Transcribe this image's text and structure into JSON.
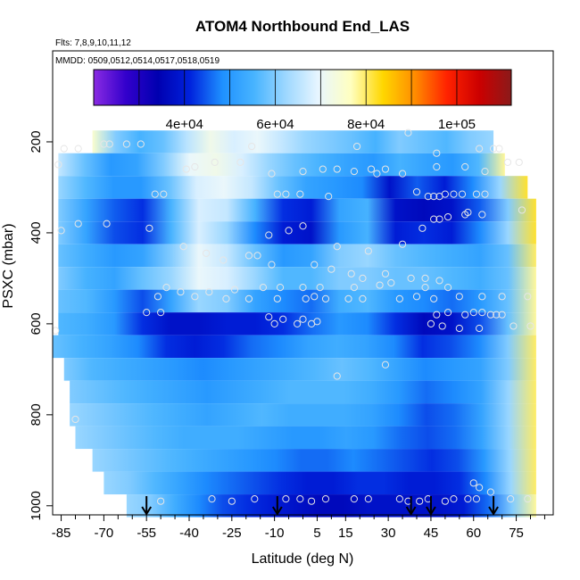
{
  "chart_data": {
    "type": "heatmap",
    "title": "ATOM4 Northbound End_LAS",
    "flights_text": "Flts: 7,8,9,10,11,12",
    "dates_text": "MMDD: 0509,0512,0514,0517,0518,0519",
    "xlabel": "Latitude (deg N)",
    "ylabel": "PSXC (mbar)",
    "xlim": [
      -88,
      88
    ],
    "ylim": [
      1020,
      0
    ],
    "x_ticks": [
      -85,
      -70,
      -55,
      -40,
      -25,
      -10,
      5,
      15,
      30,
      45,
      60,
      75
    ],
    "y_ticks": [
      200,
      400,
      600,
      800,
      1000
    ],
    "colorbar": {
      "range": [
        20000,
        112000
      ],
      "ticks": [
        40000,
        60000,
        80000,
        100000
      ],
      "tick_labels": [
        "4e+04",
        "6e+04",
        "8e+04",
        "1e+05"
      ],
      "colors": [
        "#8a2be2",
        "#3300cc",
        "#0000b0",
        "#0022dd",
        "#1e90ff",
        "#48b4ff",
        "#9fd8ff",
        "#e8f6ff",
        "#ffffc0",
        "#ffd700",
        "#ff8c00",
        "#ff2200",
        "#cc0000",
        "#8b1a1a"
      ]
    },
    "pressure_bands": [
      200,
      250,
      300,
      350,
      400,
      450,
      500,
      550,
      600,
      650,
      700,
      750,
      800,
      850,
      900,
      950,
      1000
    ],
    "band_x_start": [
      -74,
      -86,
      -86,
      -86,
      -86,
      -86,
      -86,
      -86,
      -86,
      -88,
      -84,
      -82,
      -82,
      -80,
      -74,
      -70,
      -62
    ],
    "band_x_end": [
      67,
      71,
      79,
      82,
      82,
      82,
      82,
      82,
      82,
      82,
      82,
      82,
      82,
      82,
      82,
      82,
      82
    ],
    "colorscale_values": [
      [
        75000,
        60000,
        55000,
        58000,
        65000,
        72000,
        68000,
        70000,
        66000,
        62000,
        60000,
        58000,
        55000,
        60000,
        58000,
        56000,
        60000,
        62000
      ],
      [
        66000,
        58000,
        50000,
        52000,
        60000,
        70000,
        72000,
        68000,
        62000,
        58000,
        55000,
        52000,
        50000,
        55000,
        52000,
        50000,
        56000,
        78000
      ],
      [
        62000,
        56000,
        50000,
        50000,
        58000,
        68000,
        70000,
        66000,
        58000,
        52000,
        50000,
        48000,
        38000,
        45000,
        40000,
        48000,
        62000,
        82000
      ],
      [
        60000,
        52000,
        45000,
        42000,
        55000,
        68000,
        66000,
        55000,
        42000,
        40000,
        52000,
        55000,
        38000,
        36000,
        38000,
        45000,
        60000,
        82000
      ],
      [
        60000,
        52000,
        44000,
        42000,
        55000,
        68000,
        62000,
        48000,
        40000,
        38000,
        50000,
        55000,
        40000,
        42000,
        40000,
        48000,
        62000,
        82000
      ],
      [
        58000,
        54000,
        50000,
        52000,
        60000,
        70000,
        66000,
        58000,
        50000,
        52000,
        60000,
        62000,
        58000,
        56000,
        54000,
        52000,
        58000,
        80000
      ],
      [
        60000,
        55000,
        52000,
        58000,
        62000,
        70000,
        68000,
        62000,
        56000,
        56000,
        60000,
        60000,
        58000,
        58000,
        56000,
        54000,
        58000,
        78000
      ],
      [
        58000,
        56000,
        50000,
        44000,
        52000,
        62000,
        60000,
        52000,
        48000,
        46000,
        54000,
        56000,
        50000,
        48000,
        46000,
        50000,
        58000,
        78000
      ],
      [
        56000,
        54000,
        50000,
        42000,
        38000,
        38000,
        40000,
        40000,
        42000,
        46000,
        50000,
        48000,
        42000,
        36000,
        38000,
        44000,
        58000,
        78000
      ],
      [
        58000,
        55000,
        52000,
        48000,
        42000,
        40000,
        42000,
        46000,
        48000,
        52000,
        54000,
        52000,
        48000,
        42000,
        44000,
        48000,
        60000,
        80000
      ],
      [
        60000,
        56000,
        54000,
        52000,
        50000,
        48000,
        50000,
        52000,
        54000,
        56000,
        58000,
        56000,
        52000,
        48000,
        50000,
        52000,
        60000,
        80000
      ],
      [
        60000,
        58000,
        56000,
        54000,
        52000,
        50000,
        52000,
        54000,
        56000,
        56000,
        56000,
        54000,
        50000,
        46000,
        48000,
        52000,
        62000,
        80000
      ],
      [
        62000,
        60000,
        58000,
        56000,
        54000,
        52000,
        54000,
        56000,
        54000,
        54000,
        54000,
        52000,
        48000,
        44000,
        46000,
        52000,
        62000,
        80000
      ],
      [
        62000,
        60000,
        58000,
        56000,
        54000,
        54000,
        54000,
        52000,
        50000,
        50000,
        52000,
        50000,
        46000,
        44000,
        46000,
        52000,
        62000,
        80000
      ],
      [
        62000,
        60000,
        58000,
        56000,
        54000,
        52000,
        50000,
        48000,
        46000,
        46000,
        48000,
        46000,
        44000,
        42000,
        44000,
        50000,
        62000,
        80000
      ],
      [
        62000,
        60000,
        56000,
        52000,
        48000,
        46000,
        44000,
        42000,
        40000,
        40000,
        42000,
        42000,
        40000,
        40000,
        42000,
        48000,
        62000,
        80000
      ],
      [
        62000,
        60000,
        54000,
        48000,
        44000,
        42000,
        40000,
        38000,
        36000,
        36000,
        38000,
        38000,
        38000,
        38000,
        40000,
        46000,
        60000,
        78000
      ]
    ],
    "sample_points": [
      [
        -84,
        215
      ],
      [
        -79,
        215
      ],
      [
        -70,
        205
      ],
      [
        -68,
        205
      ],
      [
        -62,
        205
      ],
      [
        -57,
        205
      ],
      [
        -18,
        210
      ],
      [
        19,
        210
      ],
      [
        37,
        180
      ],
      [
        47,
        225
      ],
      [
        62,
        215
      ],
      [
        67,
        215
      ],
      [
        69,
        215
      ],
      [
        72,
        245
      ],
      [
        76,
        245
      ],
      [
        -86,
        250
      ],
      [
        -31,
        245
      ],
      [
        -22,
        245
      ],
      [
        -41,
        260
      ],
      [
        -38,
        255
      ],
      [
        -11,
        270
      ],
      [
        0,
        265
      ],
      [
        7,
        260
      ],
      [
        12,
        260
      ],
      [
        18,
        265
      ],
      [
        24,
        260
      ],
      [
        26,
        270
      ],
      [
        29,
        260
      ],
      [
        35,
        270
      ],
      [
        47,
        255
      ],
      [
        57,
        255
      ],
      [
        64,
        265
      ],
      [
        -52,
        315
      ],
      [
        -49,
        315
      ],
      [
        -9,
        315
      ],
      [
        -6,
        315
      ],
      [
        -1,
        315
      ],
      [
        9,
        320
      ],
      [
        40,
        310
      ],
      [
        44,
        320
      ],
      [
        46,
        320
      ],
      [
        48,
        320
      ],
      [
        50,
        315
      ],
      [
        53,
        315
      ],
      [
        56,
        315
      ],
      [
        61,
        315
      ],
      [
        64,
        315
      ],
      [
        -69,
        380
      ],
      [
        -79,
        380
      ],
      [
        -54,
        390
      ],
      [
        -12,
        405
      ],
      [
        -5,
        395
      ],
      [
        0,
        385
      ],
      [
        12,
        430
      ],
      [
        23,
        440
      ],
      [
        35,
        425
      ],
      [
        42,
        390
      ],
      [
        46,
        370
      ],
      [
        48,
        370
      ],
      [
        51,
        365
      ],
      [
        57,
        360
      ],
      [
        58,
        355
      ],
      [
        63,
        360
      ],
      [
        77,
        350
      ],
      [
        -85,
        395
      ],
      [
        -42,
        430
      ],
      [
        -34,
        445
      ],
      [
        -28,
        460
      ],
      [
        -19,
        450
      ],
      [
        -16,
        450
      ],
      [
        -11,
        470
      ],
      [
        4,
        470
      ],
      [
        10,
        480
      ],
      [
        17,
        490
      ],
      [
        21,
        500
      ],
      [
        29,
        490
      ],
      [
        43,
        500
      ],
      [
        48,
        505
      ],
      [
        -48,
        520
      ],
      [
        -43,
        530
      ],
      [
        -33,
        530
      ],
      [
        -24,
        525
      ],
      [
        -14,
        520
      ],
      [
        -8,
        520
      ],
      [
        0,
        520
      ],
      [
        6,
        520
      ],
      [
        18,
        520
      ],
      [
        27,
        515
      ],
      [
        31,
        510
      ],
      [
        38,
        500
      ],
      [
        43,
        520
      ],
      [
        51,
        520
      ],
      [
        -51,
        540
      ],
      [
        -38,
        540
      ],
      [
        -27,
        545
      ],
      [
        -19,
        545
      ],
      [
        -9,
        545
      ],
      [
        1,
        545
      ],
      [
        4,
        540
      ],
      [
        8,
        545
      ],
      [
        16,
        545
      ],
      [
        21,
        545
      ],
      [
        34,
        545
      ],
      [
        40,
        540
      ],
      [
        46,
        545
      ],
      [
        55,
        540
      ],
      [
        63,
        540
      ],
      [
        70,
        540
      ],
      [
        79,
        540
      ],
      [
        -55,
        575
      ],
      [
        -50,
        575
      ],
      [
        -12,
        585
      ],
      [
        -7,
        590
      ],
      [
        0,
        590
      ],
      [
        5,
        595
      ],
      [
        47,
        580
      ],
      [
        51,
        575
      ],
      [
        57,
        580
      ],
      [
        60,
        575
      ],
      [
        63,
        575
      ],
      [
        66,
        580
      ],
      [
        68,
        580
      ],
      [
        70,
        580
      ],
      [
        -87,
        615
      ],
      [
        -10,
        600
      ],
      [
        -2,
        600
      ],
      [
        3,
        600
      ],
      [
        45,
        600
      ],
      [
        49,
        605
      ],
      [
        55,
        610
      ],
      [
        62,
        610
      ],
      [
        74,
        605
      ],
      [
        80,
        605
      ],
      [
        12,
        715
      ],
      [
        29,
        690
      ],
      [
        -80,
        810
      ],
      [
        60,
        950
      ],
      [
        62,
        960
      ],
      [
        66,
        970
      ],
      [
        -50,
        990
      ],
      [
        -32,
        985
      ],
      [
        -25,
        990
      ],
      [
        -17,
        985
      ],
      [
        -6,
        985
      ],
      [
        -1,
        985
      ],
      [
        3,
        990
      ],
      [
        8,
        985
      ],
      [
        18,
        985
      ],
      [
        23,
        985
      ],
      [
        34,
        985
      ],
      [
        37,
        990
      ],
      [
        41,
        990
      ],
      [
        44,
        985
      ],
      [
        50,
        990
      ],
      [
        53,
        985
      ],
      [
        58,
        985
      ],
      [
        61,
        985
      ],
      [
        73,
        985
      ],
      [
        79,
        985
      ]
    ],
    "flight_markers_lat": [
      -55,
      -9,
      38,
      45,
      67
    ]
  }
}
